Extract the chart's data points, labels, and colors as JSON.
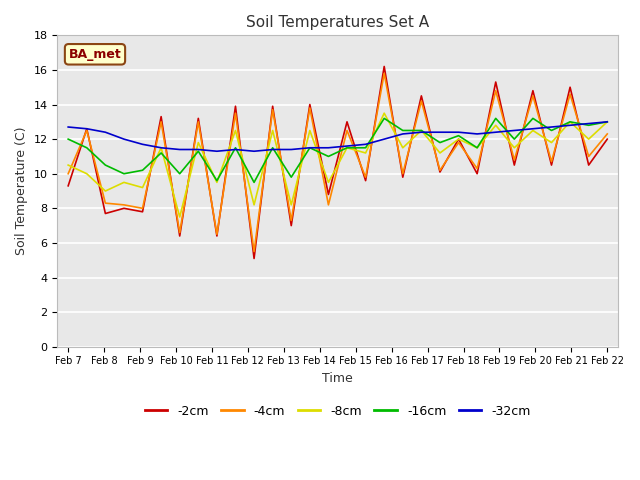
{
  "title": "Soil Temperatures Set A",
  "xlabel": "Time",
  "ylabel": "Soil Temperature (C)",
  "annotation": "BA_met",
  "ylim": [
    0,
    18
  ],
  "yticks": [
    0,
    2,
    4,
    6,
    8,
    10,
    12,
    14,
    16,
    18
  ],
  "fig_bg_color": "#ffffff",
  "plot_bg_color": "#e8e8e8",
  "colors": {
    "-2cm": "#cc0000",
    "-4cm": "#ff8800",
    "-8cm": "#dddd00",
    "-16cm": "#00bb00",
    "-32cm": "#0000cc"
  },
  "x_labels": [
    "Feb 7",
    "Feb 8",
    "Feb 9",
    "Feb 10",
    "Feb 11",
    "Feb 12",
    "Feb 13",
    "Feb 14",
    "Feb 15",
    "Feb 16",
    "Feb 17",
    "Feb 18",
    "Feb 19",
    "Feb 20",
    "Feb 21",
    "Feb 22"
  ],
  "depths": [
    "-2cm",
    "-4cm",
    "-8cm",
    "-16cm",
    "-32cm"
  ],
  "data": {
    "-2cm": [
      9.3,
      12.6,
      7.7,
      8.0,
      7.8,
      13.3,
      6.4,
      13.2,
      6.4,
      13.9,
      5.1,
      13.9,
      7.0,
      14.0,
      8.8,
      13.0,
      9.6,
      16.2,
      9.8,
      14.5,
      10.1,
      12.0,
      10.0,
      15.3,
      10.5,
      14.8,
      10.5,
      15.0,
      10.5,
      12.0
    ],
    "-4cm": [
      10.0,
      12.5,
      8.3,
      8.2,
      8.0,
      13.0,
      6.6,
      13.0,
      6.5,
      13.5,
      5.5,
      13.7,
      7.3,
      13.8,
      8.2,
      12.5,
      9.8,
      15.8,
      10.0,
      14.2,
      10.2,
      11.8,
      10.3,
      14.8,
      10.8,
      14.5,
      10.7,
      14.6,
      11.0,
      12.3
    ],
    "-8cm": [
      10.5,
      10.0,
      9.0,
      9.5,
      9.2,
      11.5,
      7.5,
      11.8,
      9.5,
      12.5,
      8.2,
      12.5,
      8.2,
      12.5,
      9.5,
      11.5,
      11.2,
      13.5,
      11.5,
      12.5,
      11.2,
      12.0,
      11.5,
      12.8,
      11.5,
      12.5,
      11.8,
      13.0,
      12.0,
      13.0
    ],
    "-16cm": [
      12.0,
      11.5,
      10.5,
      10.0,
      10.2,
      11.2,
      10.0,
      11.3,
      9.6,
      11.5,
      9.5,
      11.5,
      9.8,
      11.5,
      11.0,
      11.5,
      11.5,
      13.2,
      12.5,
      12.5,
      11.8,
      12.2,
      11.5,
      13.2,
      12.0,
      13.2,
      12.5,
      13.0,
      12.8,
      13.0
    ],
    "-32cm": [
      12.7,
      12.6,
      12.4,
      12.0,
      11.7,
      11.5,
      11.4,
      11.4,
      11.3,
      11.4,
      11.3,
      11.4,
      11.4,
      11.5,
      11.5,
      11.6,
      11.7,
      12.0,
      12.3,
      12.4,
      12.4,
      12.4,
      12.3,
      12.4,
      12.5,
      12.6,
      12.7,
      12.8,
      12.9,
      13.0
    ]
  }
}
